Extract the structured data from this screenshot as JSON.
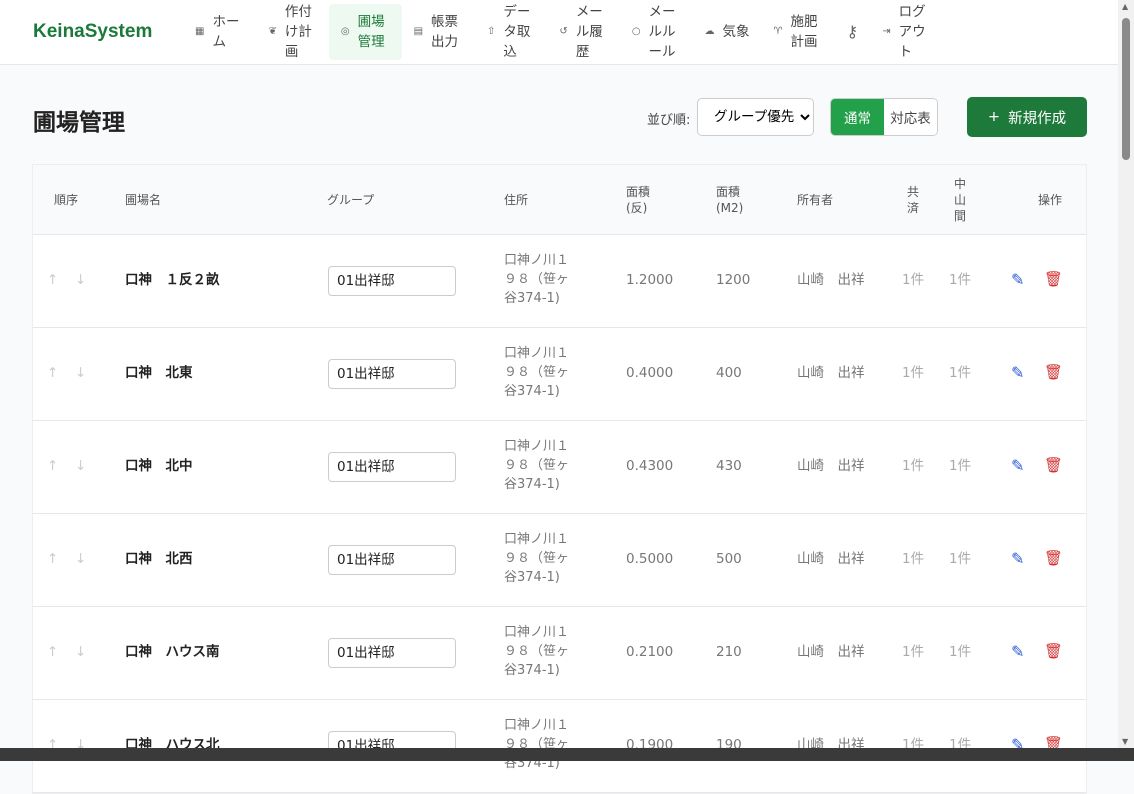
{
  "brand": "KeinaSystem",
  "nav": [
    {
      "icon": "grid-icon",
      "glyph": "▦",
      "label": "ホーム"
    },
    {
      "icon": "leaf-icon",
      "glyph": "❦",
      "label": "作付け計画"
    },
    {
      "icon": "map-pin-icon",
      "glyph": "◎",
      "label": "圃場管理",
      "active": true
    },
    {
      "icon": "document-icon",
      "glyph": "▤",
      "label": "帳票出力"
    },
    {
      "icon": "upload-icon",
      "glyph": "⇧",
      "label": "データ取込"
    },
    {
      "icon": "history-icon",
      "glyph": "↺",
      "label": "メール履歴"
    },
    {
      "icon": "circle-icon",
      "glyph": "○",
      "label": "メールルール"
    },
    {
      "icon": "cloud-icon",
      "glyph": "☁",
      "label": "気象"
    },
    {
      "icon": "sprout-icon",
      "glyph": "♈",
      "label": "施肥計画"
    },
    {
      "icon": "key-icon",
      "glyph": "⚷",
      "label": ""
    },
    {
      "icon": "logout-icon",
      "glyph": "⇥",
      "label": "ログアウト"
    }
  ],
  "page_title": "圃場管理",
  "sort_label": "並び順:",
  "sort_value": "グループ優先",
  "view_toggle": [
    "通常",
    "対応表"
  ],
  "new_button": "新規作成",
  "columns": [
    "順序",
    "圃場名",
    "グループ",
    "住所",
    "面積\n(反)",
    "面積\n(M2)",
    "所有者",
    "共\n済",
    "中\n山\n間",
    "操作"
  ],
  "rows": [
    {
      "name": "口神　１反２畝",
      "group": "01出祥邸",
      "address": "口神ノ川１９８（笹ヶ谷374-1)",
      "area_tan": "1.2000",
      "area_m2": "1200",
      "owner": "山崎　出祥",
      "kyosai": "1件",
      "chusankan": "1件"
    },
    {
      "name": "口神　北東",
      "group": "01出祥邸",
      "address": "口神ノ川１９８（笹ヶ谷374-1)",
      "area_tan": "0.4000",
      "area_m2": "400",
      "owner": "山崎　出祥",
      "kyosai": "1件",
      "chusankan": "1件"
    },
    {
      "name": "口神　北中",
      "group": "01出祥邸",
      "address": "口神ノ川１９８（笹ヶ谷374-1)",
      "area_tan": "0.4300",
      "area_m2": "430",
      "owner": "山崎　出祥",
      "kyosai": "1件",
      "chusankan": "1件"
    },
    {
      "name": "口神　北西",
      "group": "01出祥邸",
      "address": "口神ノ川１９８（笹ヶ谷374-1)",
      "area_tan": "0.5000",
      "area_m2": "500",
      "owner": "山崎　出祥",
      "kyosai": "1件",
      "chusankan": "1件"
    },
    {
      "name": "口神　ハウス南",
      "group": "01出祥邸",
      "address": "口神ノ川１９８（笹ヶ谷374-1)",
      "area_tan": "0.2100",
      "area_m2": "210",
      "owner": "山崎　出祥",
      "kyosai": "1件",
      "chusankan": "1件"
    },
    {
      "name": "口神　ハウス北",
      "group": "01出祥邸",
      "address": "口神ノ川１９８（笹ヶ谷374-1)",
      "area_tan": "0.1900",
      "area_m2": "190",
      "owner": "山崎　出祥",
      "kyosai": "1件",
      "chusankan": "1件"
    }
  ]
}
